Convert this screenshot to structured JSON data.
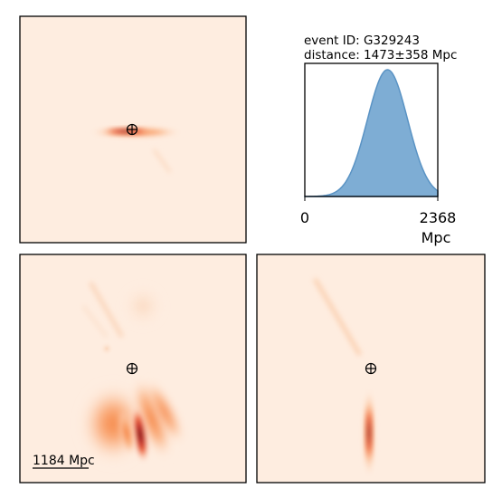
{
  "chart_data": [
    {
      "type": "heatmap",
      "panel": "projection-top-left",
      "description_free": true,
      "marker": "earth-crosshair-icon"
    },
    {
      "type": "area",
      "panel": "distance-posterior",
      "event_label": "event ID: G329243",
      "distance_label": "distance: 1473±358 Mpc",
      "mean_mpc": 1473,
      "sigma_mpc": 358,
      "xlim": [
        0,
        2368
      ],
      "xticks": [
        "0",
        "2368"
      ],
      "xlabel": "Mpc",
      "fill_color": "#7eadd4",
      "edge_color": "#5a93c4"
    },
    {
      "type": "heatmap",
      "panel": "projection-bottom-left",
      "scale_bar_label": "1184 Mpc",
      "marker": "earth-crosshair-icon"
    },
    {
      "type": "heatmap",
      "panel": "projection-bottom-right",
      "marker": "earth-crosshair-icon"
    }
  ],
  "colors": {
    "background": "#feede0",
    "low": "#fddcc4",
    "mid": "#f4772e",
    "high": "#c81d2e",
    "peak": "#3a0509"
  }
}
